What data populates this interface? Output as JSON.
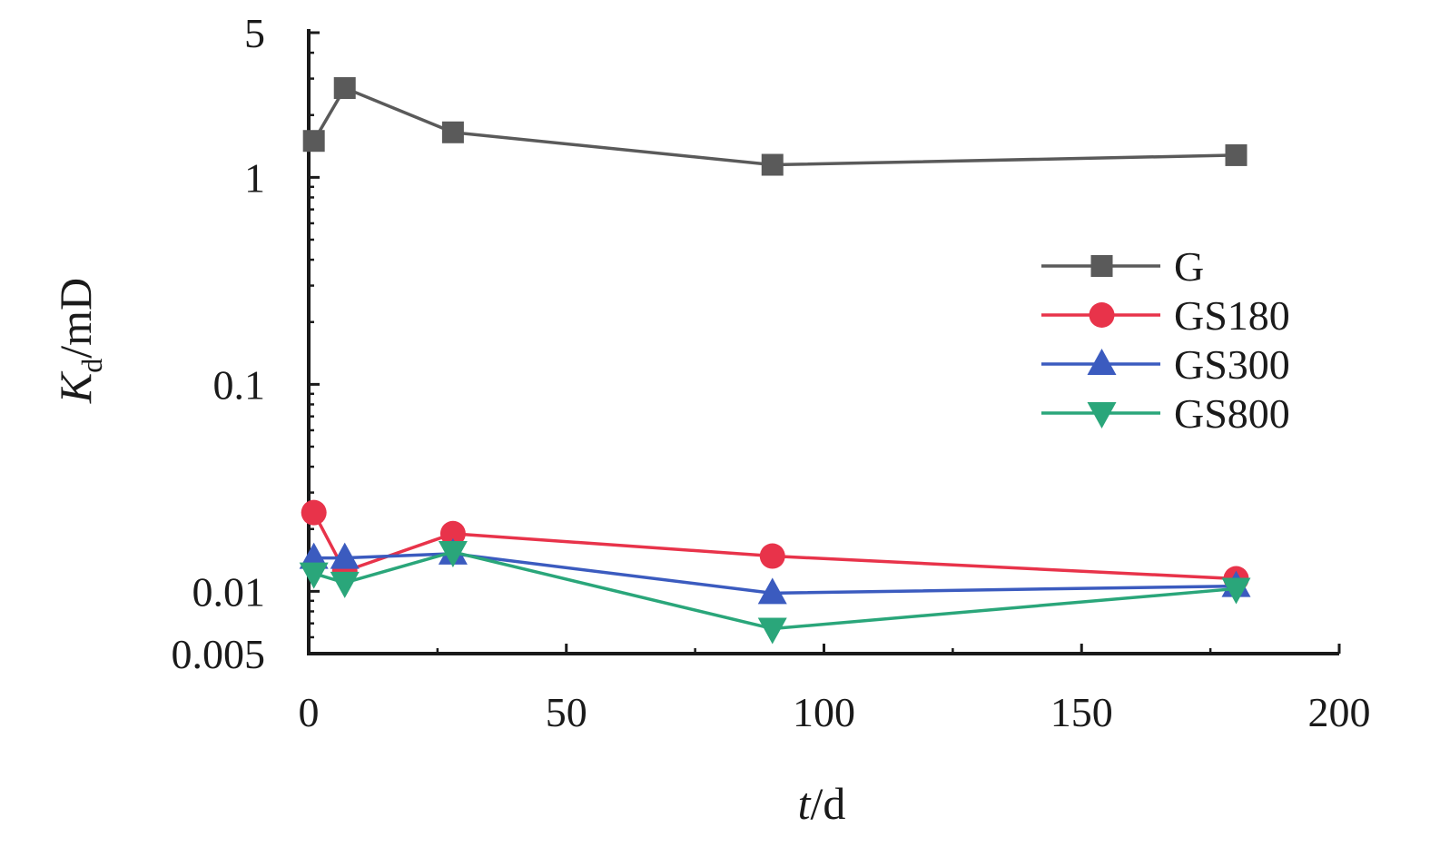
{
  "chart_data": {
    "type": "line",
    "title": "",
    "xlabel": {
      "main": "t",
      "unit": "/d"
    },
    "ylabel": {
      "main": "K",
      "sub": "d",
      "unit": "/mD"
    },
    "x_scale": "linear",
    "y_scale": "log",
    "xlim": [
      0,
      200
    ],
    "ylim": [
      0.005,
      5
    ],
    "x_ticks": [
      0,
      50,
      100,
      150,
      200
    ],
    "x_tick_labels": [
      "0",
      "50",
      "100",
      "150",
      "200"
    ],
    "y_ticks": [
      0.005,
      0.01,
      0.1,
      1,
      5
    ],
    "y_tick_labels": [
      "0.005",
      "0.01",
      "0.1",
      "1",
      "5"
    ],
    "grid": false,
    "legend_position": "right",
    "series": [
      {
        "name": "G",
        "color": "#5a5a5a",
        "marker": "square",
        "x": [
          1,
          7,
          28,
          90,
          180
        ],
        "y": [
          1.5,
          2.7,
          1.65,
          1.15,
          1.28
        ]
      },
      {
        "name": "GS180",
        "color": "#e8334a",
        "marker": "circle",
        "x": [
          1,
          7,
          28,
          90,
          180
        ],
        "y": [
          0.024,
          0.0125,
          0.019,
          0.0148,
          0.0115
        ]
      },
      {
        "name": "GS300",
        "color": "#3b5bbf",
        "marker": "triangle-up",
        "x": [
          1,
          7,
          28,
          90,
          180
        ],
        "y": [
          0.0145,
          0.0145,
          0.0152,
          0.0098,
          0.0106
        ]
      },
      {
        "name": "GS800",
        "color": "#2aa67a",
        "marker": "triangle-down",
        "x": [
          1,
          7,
          28,
          90,
          180
        ],
        "y": [
          0.0122,
          0.011,
          0.0155,
          0.0066,
          0.0103
        ]
      }
    ]
  }
}
